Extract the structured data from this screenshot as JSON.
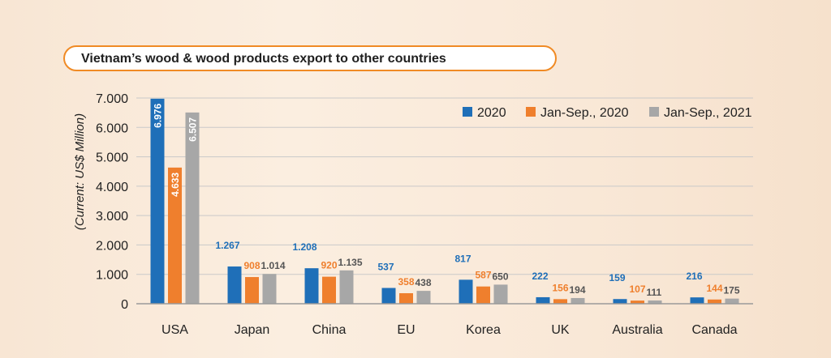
{
  "chart_data": {
    "type": "bar",
    "title": "Vietnam’s wood & wood products export to other countries",
    "ylabel": "(Current: US$ Million)",
    "xlabel": "",
    "categories": [
      "USA",
      "Japan",
      "China",
      "EU",
      "Korea",
      "UK",
      "Australia",
      "Canada"
    ],
    "ylim": [
      0,
      7000
    ],
    "yticks": [
      0,
      1000,
      2000,
      3000,
      4000,
      5000,
      6000,
      7000
    ],
    "ytick_labels": [
      "0",
      "1.000",
      "2.000",
      "3.000",
      "4.000",
      "5.000",
      "6.000",
      "7.000"
    ],
    "grid": true,
    "legend_position": "top-right",
    "series": [
      {
        "name": "2020",
        "color": "#1f6fb8",
        "values": [
          6976,
          1267,
          1208,
          537,
          817,
          222,
          159,
          216
        ],
        "labels": [
          "6.976",
          "1.267",
          "1.208",
          "537",
          "817",
          "222",
          "159",
          "216"
        ]
      },
      {
        "name": "Jan-Sep., 2020",
        "color": "#ef7f2d",
        "values": [
          4633,
          908,
          920,
          358,
          587,
          156,
          107,
          144
        ],
        "labels": [
          "4.633",
          "908",
          "920",
          "358",
          "587",
          "156",
          "107",
          "144"
        ]
      },
      {
        "name": "Jan-Sep., 2021",
        "color": "#a7a7a7",
        "values": [
          6507,
          1014,
          1135,
          438,
          650,
          194,
          111,
          175
        ],
        "labels": [
          "6.507",
          "1.014",
          "1.135",
          "438",
          "650",
          "194",
          "111",
          "175"
        ]
      }
    ],
    "label_colors": [
      "#1f6fb8",
      "#ef7f2d",
      "#555555"
    ]
  }
}
